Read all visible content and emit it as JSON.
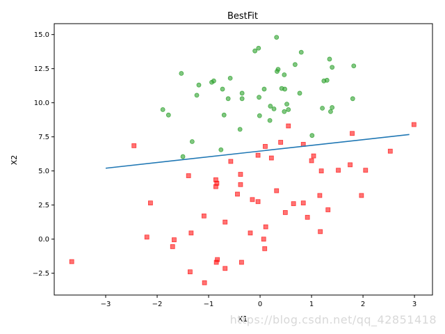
{
  "chart_data": {
    "type": "scatter",
    "title": "BestFit",
    "xlabel": "X1",
    "ylabel": "X2",
    "xlim": [
      -4.0,
      3.35
    ],
    "ylim": [
      -4.1,
      15.8
    ],
    "xticks": [
      -3,
      -2,
      -1,
      0,
      1,
      2,
      3
    ],
    "yticks": [
      -2.5,
      0.0,
      2.5,
      5.0,
      7.5,
      10.0,
      12.5,
      15.0
    ],
    "xtick_labels": [
      "−3",
      "−2",
      "−1",
      "0",
      "1",
      "2",
      "3"
    ],
    "ytick_labels": [
      "−2.5",
      "0.0",
      "2.5",
      "5.0",
      "7.5",
      "10.0",
      "12.5",
      "15.0"
    ],
    "grid": false,
    "series": [
      {
        "marker": "circle",
        "color": "#2ca02c",
        "points": [
          [
            0.32,
            14.8
          ],
          [
            -0.03,
            14.0
          ],
          [
            -0.1,
            13.8
          ],
          [
            0.8,
            13.7
          ],
          [
            1.35,
            13.2
          ],
          [
            0.35,
            12.45
          ],
          [
            0.33,
            12.3
          ],
          [
            0.68,
            12.8
          ],
          [
            1.4,
            12.6
          ],
          [
            1.82,
            12.7
          ],
          [
            0.47,
            12.05
          ],
          [
            -1.53,
            12.15
          ],
          [
            -0.58,
            11.8
          ],
          [
            -0.94,
            11.5
          ],
          [
            -0.9,
            11.6
          ],
          [
            -1.19,
            11.3
          ],
          [
            1.24,
            11.6
          ],
          [
            1.3,
            11.65
          ],
          [
            0.42,
            11.05
          ],
          [
            0.48,
            11.0
          ],
          [
            0.08,
            11.0
          ],
          [
            -0.73,
            11.0
          ],
          [
            -0.35,
            10.7
          ],
          [
            0.77,
            10.7
          ],
          [
            -1.23,
            10.55
          ],
          [
            -0.62,
            10.3
          ],
          [
            -0.35,
            10.3
          ],
          [
            -0.02,
            10.4
          ],
          [
            1.8,
            10.3
          ],
          [
            0.52,
            9.9
          ],
          [
            0.2,
            9.75
          ],
          [
            -1.89,
            9.5
          ],
          [
            0.27,
            9.55
          ],
          [
            1.21,
            9.6
          ],
          [
            1.4,
            9.65
          ],
          [
            0.55,
            9.5
          ],
          [
            0.47,
            9.35
          ],
          [
            -1.78,
            9.1
          ],
          [
            -0.7,
            9.1
          ],
          [
            -0.01,
            9.05
          ],
          [
            1.37,
            9.35
          ],
          [
            0.19,
            8.7
          ],
          [
            -0.39,
            8.05
          ],
          [
            1.01,
            7.6
          ],
          [
            -1.32,
            7.15
          ],
          [
            -0.76,
            6.55
          ],
          [
            -1.5,
            6.05
          ]
        ]
      },
      {
        "marker": "square",
        "color": "#ff0000",
        "points": [
          [
            2.99,
            8.4
          ],
          [
            0.55,
            8.3
          ],
          [
            1.79,
            7.75
          ],
          [
            0.4,
            7.1
          ],
          [
            0.84,
            6.95
          ],
          [
            -2.45,
            6.85
          ],
          [
            0.1,
            6.8
          ],
          [
            2.53,
            6.45
          ],
          [
            1.04,
            6.1
          ],
          [
            -0.04,
            6.15
          ],
          [
            0.22,
            5.95
          ],
          [
            1.0,
            5.75
          ],
          [
            -0.57,
            5.7
          ],
          [
            1.75,
            5.45
          ],
          [
            1.19,
            5.0
          ],
          [
            1.52,
            5.05
          ],
          [
            2.05,
            5.05
          ],
          [
            -0.38,
            4.75
          ],
          [
            -1.39,
            4.65
          ],
          [
            -0.86,
            4.35
          ],
          [
            -0.84,
            4.1
          ],
          [
            -0.86,
            3.85
          ],
          [
            -0.38,
            4.0
          ],
          [
            -0.44,
            3.3
          ],
          [
            0.32,
            3.55
          ],
          [
            1.16,
            3.2
          ],
          [
            1.97,
            3.2
          ],
          [
            -0.15,
            2.9
          ],
          [
            -0.04,
            2.75
          ],
          [
            0.65,
            2.6
          ],
          [
            0.84,
            2.65
          ],
          [
            -2.13,
            2.65
          ],
          [
            1.32,
            2.15
          ],
          [
            0.49,
            1.95
          ],
          [
            -1.09,
            1.7
          ],
          [
            0.92,
            1.6
          ],
          [
            -0.68,
            1.25
          ],
          [
            0.11,
            0.9
          ],
          [
            1.17,
            0.55
          ],
          [
            -1.34,
            0.45
          ],
          [
            -0.19,
            0.45
          ],
          [
            -2.2,
            0.15
          ],
          [
            -1.67,
            -0.05
          ],
          [
            0.07,
            0.0
          ],
          [
            -1.7,
            -0.55
          ],
          [
            0.09,
            -0.7
          ],
          [
            -3.66,
            -1.65
          ],
          [
            -0.83,
            -1.5
          ],
          [
            -0.36,
            -1.7
          ],
          [
            -0.85,
            -1.7
          ],
          [
            -0.68,
            -2.15
          ],
          [
            -1.36,
            -2.4
          ],
          [
            -1.08,
            -3.2
          ]
        ]
      },
      {
        "marker": "line",
        "color": "#1f77b4",
        "points": [
          [
            -3.0,
            5.2
          ],
          [
            2.9,
            7.67
          ]
        ]
      }
    ]
  },
  "watermark": "https://blog.csdn.net/qq_42851418"
}
